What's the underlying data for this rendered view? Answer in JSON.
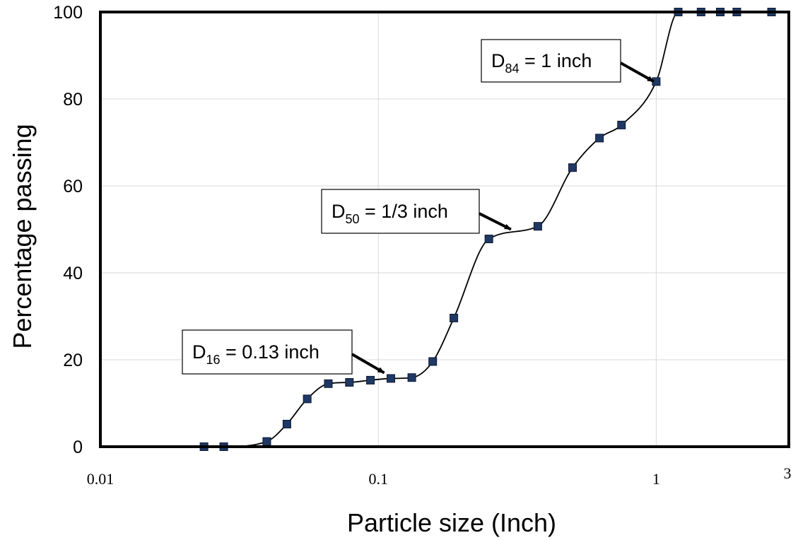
{
  "chart_data": {
    "type": "line",
    "title": "",
    "xlabel": "Particle size (Inch)",
    "ylabel": "Percentage passing",
    "x_scale": "log",
    "xlim": [
      0.01,
      3
    ],
    "ylim": [
      0,
      100
    ],
    "x_ticks": [
      {
        "value": 0.01,
        "label": "0.01"
      },
      {
        "value": 0.1,
        "label": "0.1"
      },
      {
        "value": 1,
        "label": "1"
      },
      {
        "value": 3,
        "label": "3"
      }
    ],
    "y_ticks": [
      {
        "value": 0,
        "label": "0"
      },
      {
        "value": 20,
        "label": "20"
      },
      {
        "value": 40,
        "label": "40"
      },
      {
        "value": 60,
        "label": "60"
      },
      {
        "value": 80,
        "label": "80"
      },
      {
        "value": 100,
        "label": "100"
      }
    ],
    "grid": true,
    "legend": "none",
    "series": [
      {
        "marker": "square",
        "color": "#1f3864",
        "line_color": "#000000",
        "x": [
          0.0236,
          0.0278,
          0.0397,
          0.0469,
          0.0555,
          0.0661,
          0.0787,
          0.0937,
          0.111,
          0.132,
          0.157,
          0.187,
          0.25,
          0.375,
          0.5,
          0.625,
          0.75,
          1.0,
          1.2,
          1.45,
          1.7,
          1.95,
          2.6
        ],
        "y": [
          0,
          0,
          1.2,
          5.2,
          11,
          14.5,
          14.8,
          15.3,
          15.7,
          15.9,
          19.6,
          29.6,
          47.8,
          50.7,
          64.2,
          71,
          74,
          84,
          100,
          100,
          100,
          100,
          100
        ]
      }
    ],
    "annotations": [
      {
        "base": "D",
        "sub": "16",
        "rest": " = 0.13 inch",
        "points_to": {
          "x": 0.105,
          "y": 17
        }
      },
      {
        "base": "D",
        "sub": "50",
        "rest": " = 1/3 inch",
        "points_to": {
          "x": 0.3,
          "y": 50
        }
      },
      {
        "base": "D",
        "sub": "84",
        "rest": " = 1 inch",
        "points_to": {
          "x": 0.98,
          "y": 84
        }
      }
    ]
  }
}
